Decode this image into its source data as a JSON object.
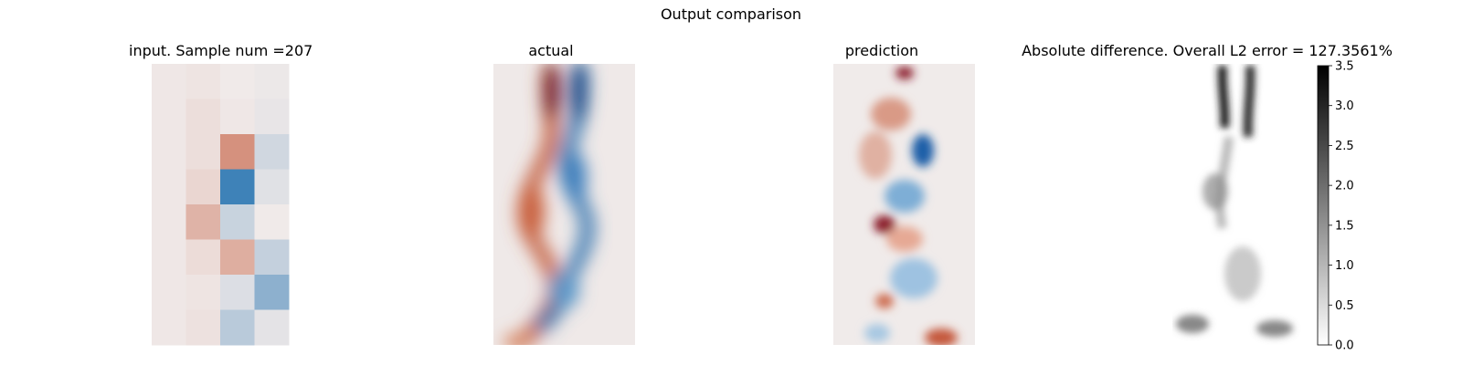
{
  "figure": {
    "title": "Output comparison"
  },
  "chart_data": [
    {
      "type": "heatmap",
      "title": "input. Sample num =207",
      "grid": false,
      "colormap": "diverging-red-blue",
      "rows": 8,
      "cols": 4,
      "values": [
        [
          0.02,
          0.04,
          0.0,
          -0.02
        ],
        [
          0.02,
          0.08,
          0.02,
          -0.04
        ],
        [
          0.02,
          0.08,
          0.62,
          -0.16
        ],
        [
          0.02,
          0.14,
          -0.9,
          -0.08
        ],
        [
          0.02,
          0.38,
          -0.2,
          0.0
        ],
        [
          0.02,
          0.1,
          0.42,
          -0.22
        ],
        [
          0.02,
          0.04,
          -0.1,
          -0.5
        ],
        [
          0.02,
          0.06,
          -0.28,
          -0.06
        ]
      ]
    },
    {
      "type": "heatmap",
      "title": "actual",
      "grid": false,
      "colormap": "diverging-red-blue"
    },
    {
      "type": "heatmap",
      "title": "prediction",
      "grid": false,
      "colormap": "diverging-red-blue"
    },
    {
      "type": "heatmap",
      "title": "Absolute difference. Overall L2 error = 127.3561%",
      "grid": false,
      "colormap": "grays",
      "colorbar": {
        "range": [
          0.0,
          3.5
        ],
        "ticks": [
          "0.0",
          "0.5",
          "1.0",
          "1.5",
          "2.0",
          "2.5",
          "3.0",
          "3.5"
        ]
      }
    }
  ]
}
